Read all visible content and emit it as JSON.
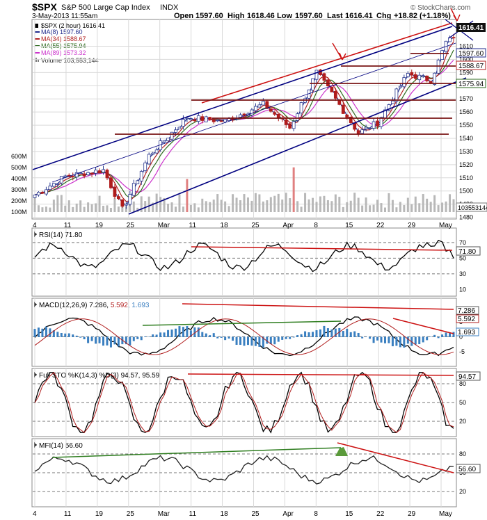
{
  "header": {
    "symbol": "$SPX",
    "name": "S&P 500 Large Cap Index",
    "exchange": "INDX",
    "datetime": "3-May-2013 11:55am",
    "open_label": "Open",
    "open": "1597.60",
    "high_label": "High",
    "high": "1618.46",
    "low_label": "Low",
    "low": "1597.60",
    "last_label": "Last",
    "last": "1616.41",
    "chg_label": "Chg",
    "chg": "+18.82 (+1.18%)",
    "watermark": "© StockCharts.com"
  },
  "legend": [
    {
      "text": "$SPX (2 hour) 1616.41",
      "color": "#000000",
      "icon": "candle-icon"
    },
    {
      "text": "MA(8) 1597.60",
      "color": "#1f2a8c",
      "icon": "line-icon"
    },
    {
      "text": "MA(34) 1588.67",
      "color": "#b22222",
      "icon": "line-icon"
    },
    {
      "text": "MA(55) 1575.94",
      "color": "#2e6b1f",
      "icon": "line-icon"
    },
    {
      "text": "MA(89) 1573.32",
      "color": "#cc33cc",
      "icon": "line-icon"
    },
    {
      "text": "Volume 103,553,144",
      "color": "#808080",
      "icon": "volume-icon"
    }
  ],
  "colors": {
    "up": "#2b3a8f",
    "down": "#b01c1c",
    "trend": "#000080",
    "annot": "#cc1111",
    "grid": "#d9d9d9",
    "volume": "#b8b8b8",
    "macd_hist": "#3a7fc0",
    "green_line": "#2e7d1f"
  },
  "badges": {
    "price_last": "1616.41",
    "ma8": "1597.60",
    "ma34": "1588.67",
    "ma55": "1575.94",
    "volume": "103553144"
  },
  "x_axis": {
    "labels": [
      "4",
      "11",
      "19",
      "25",
      "Mar",
      "11",
      "18",
      "25",
      "Apr",
      "8",
      "15",
      "22",
      "29",
      "May"
    ]
  },
  "chart_data": [
    {
      "type": "candlestick",
      "title": "$SPX (2 hour)",
      "y_ticks": [
        "1610",
        "1600",
        "1590",
        "1580",
        "1570",
        "1560",
        "1550",
        "1540",
        "1530",
        "1520",
        "1510",
        "1500",
        "1490",
        "1480"
      ],
      "ylim": [
        1484,
        1624
      ],
      "anchors": [
        [
          0,
          1497
        ],
        [
          8,
          1511
        ],
        [
          18,
          1516
        ],
        [
          23,
          1486
        ],
        [
          30,
          1527
        ],
        [
          40,
          1556
        ],
        [
          50,
          1553
        ],
        [
          60,
          1566
        ],
        [
          67,
          1548
        ],
        [
          74,
          1590
        ],
        [
          78,
          1574
        ],
        [
          85,
          1544
        ],
        [
          90,
          1552
        ],
        [
          98,
          1589
        ],
        [
          104,
          1584
        ],
        [
          108,
          1613
        ],
        [
          110,
          1616.41
        ]
      ],
      "count": 111,
      "ma8_last": 1597.6,
      "ma34_last": 1588.67,
      "ma55_last": 1575.94,
      "ma89_last": 1573.32,
      "volume_ticks": [
        "600M",
        "500M",
        "400M",
        "300M",
        "200M",
        "100M"
      ],
      "volume_last": 103553144
    },
    {
      "type": "line",
      "title": "RSI(14) 71.80",
      "y_ticks": [
        "70",
        "50",
        "30",
        "10"
      ],
      "ylim": [
        5,
        85
      ],
      "last": "71.80"
    },
    {
      "type": "line",
      "title": "MACD(12,26,9) 7.286, 5.592, 1.693",
      "legend_parts": [
        "MACD(12,26,9) 7.286, ",
        "5.592",
        ", 1.693"
      ],
      "y_ticks": [
        "5",
        "0",
        "-5"
      ],
      "ylim": [
        -9,
        12
      ],
      "last_values": [
        "7.286",
        "5.592",
        "1.693"
      ]
    },
    {
      "type": "line",
      "title": "Full STO %K(14,3) %D(3) 94.57, 95.59",
      "y_ticks": [
        "80",
        "50",
        "20"
      ],
      "ylim": [
        0,
        100
      ],
      "last": "94.57"
    },
    {
      "type": "line",
      "title": "MFI(14) 56.60",
      "y_ticks": [
        "80",
        "50",
        "20"
      ],
      "ylim": [
        0,
        100
      ],
      "last": "56.60"
    }
  ]
}
